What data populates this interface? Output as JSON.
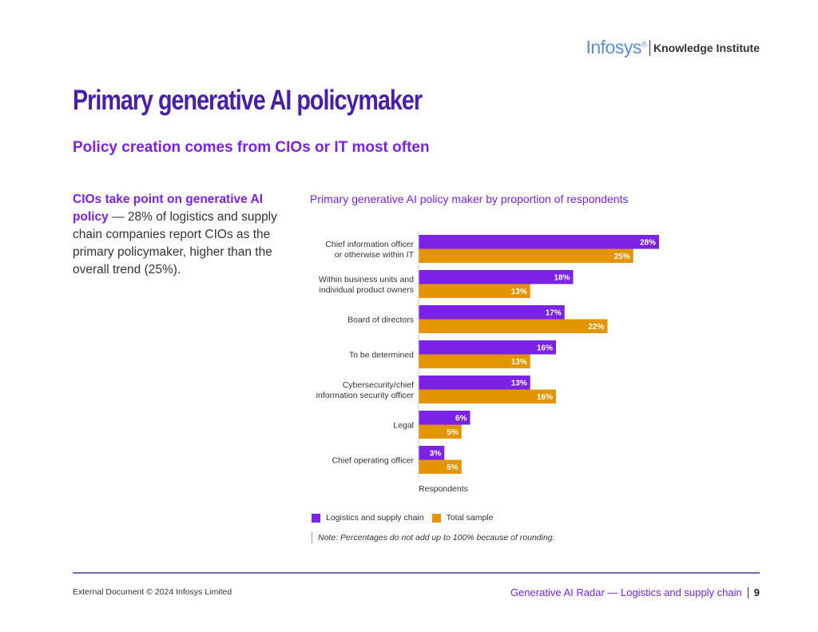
{
  "header": {
    "logo": "Infosys",
    "logo_mark": "®",
    "brand_suffix": "Knowledge Institute"
  },
  "title": "Primary generative AI policymaker",
  "subtitle": "Policy creation comes from CIOs or IT most often",
  "callout": {
    "lead": "CIOs take point on generative AI policy",
    "body": " — 28% of logistics and supply chain companies report CIOs as the primary policymaker, higher than the overall trend (25%)."
  },
  "colors": {
    "series_1": "#7b22e6",
    "series_2": "#e39500",
    "title": "#4a1fa8"
  },
  "chart_data": {
    "type": "bar",
    "orientation": "horizontal",
    "title": "Primary generative AI policy maker by proportion of respondents",
    "xlabel": "Respondents",
    "ylabel": "",
    "xlim": [
      0,
      30
    ],
    "categories": [
      [
        "Chief information officer",
        "or otherwise within IT"
      ],
      [
        "Within business units and",
        "individual product owners"
      ],
      [
        "Board of directors"
      ],
      [
        "To be determined"
      ],
      [
        "Cybersecurity/chief",
        "information security officer"
      ],
      [
        "Legal"
      ],
      [
        "Chief operating officer"
      ]
    ],
    "series": [
      {
        "name": "Logistics and supply chain",
        "values": [
          28,
          18,
          17,
          16,
          13,
          6,
          3
        ]
      },
      {
        "name": "Total sample",
        "values": [
          25,
          13,
          22,
          13,
          16,
          5,
          5
        ]
      }
    ],
    "value_suffix": "%",
    "legend": "bottom-left",
    "grid": false
  },
  "note": "Note: Percentages do not add up to 100% because of rounding.",
  "footer": {
    "left": "External Document © 2024 Infosys Limited",
    "right": "Generative AI Radar — Logistics and supply chain",
    "page": "9"
  }
}
